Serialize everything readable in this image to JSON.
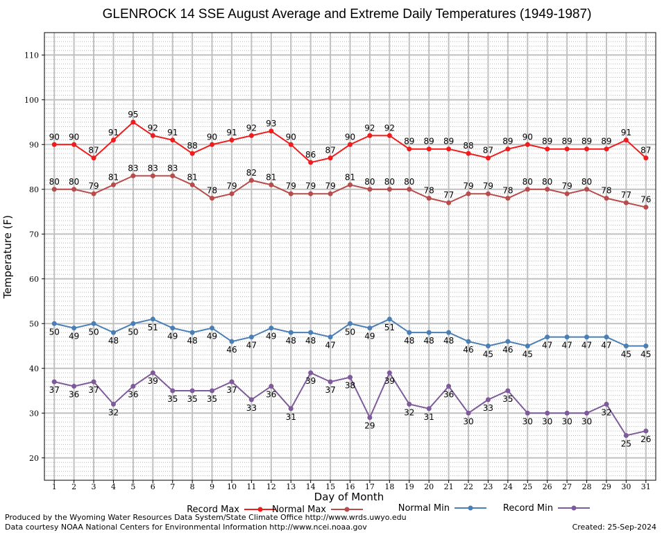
{
  "chart_data": {
    "type": "line",
    "title": "GLENROCK 14 SSE August Average and Extreme Daily Temperatures (1949-1987)",
    "xlabel": "Day of Month",
    "ylabel": "Temperature (F)",
    "x": [
      1,
      2,
      3,
      4,
      5,
      6,
      7,
      8,
      9,
      10,
      11,
      12,
      13,
      14,
      15,
      16,
      17,
      18,
      19,
      20,
      21,
      22,
      23,
      24,
      25,
      26,
      27,
      28,
      29,
      30,
      31
    ],
    "xlim": [
      0.5,
      31.5
    ],
    "ylim": [
      15,
      115
    ],
    "yticks": [
      20,
      30,
      40,
      50,
      60,
      70,
      80,
      90,
      100,
      110
    ],
    "grid": true,
    "legend_position": "bottom",
    "series": [
      {
        "name": "Record Max",
        "color": "#ee1c1c",
        "label_pos": "above",
        "values": [
          90,
          90,
          87,
          91,
          95,
          92,
          91,
          88,
          90,
          91,
          92,
          93,
          90,
          86,
          87,
          90,
          92,
          92,
          89,
          89,
          89,
          88,
          87,
          89,
          90,
          89,
          89,
          89,
          89,
          91,
          87
        ]
      },
      {
        "name": "Normal Max",
        "color": "#b84b4b",
        "label_pos": "above",
        "values": [
          80,
          80,
          79,
          81,
          83,
          83,
          83,
          81,
          78,
          79,
          82,
          81,
          79,
          79,
          79,
          81,
          80,
          80,
          80,
          78,
          77,
          79,
          79,
          78,
          80,
          80,
          79,
          80,
          78,
          77,
          76
        ]
      },
      {
        "name": "Normal Min",
        "color": "#4a7fb5",
        "label_pos": "below",
        "values": [
          50,
          49,
          50,
          48,
          50,
          51,
          49,
          48,
          49,
          46,
          47,
          49,
          48,
          48,
          47,
          50,
          49,
          51,
          48,
          48,
          48,
          46,
          45,
          46,
          45,
          47,
          47,
          47,
          47,
          45,
          45
        ]
      },
      {
        "name": "Record Min",
        "color": "#7e5a9b",
        "label_pos": "below",
        "values": [
          37,
          36,
          37,
          32,
          36,
          39,
          35,
          35,
          35,
          37,
          33,
          36,
          31,
          39,
          37,
          38,
          29,
          39,
          32,
          31,
          36,
          30,
          33,
          35,
          30,
          30,
          30,
          30,
          32,
          25,
          26
        ]
      }
    ]
  },
  "footer": {
    "produced_by": "Produced by the Wyoming Water Resources Data System/State Climate Office http://www.wrds.uwyo.edu",
    "courtesy": "Data courtesy NOAA National Centers for Environmental Information http://www.ncei.noaa.gov",
    "created": "Created: 25-Sep-2024"
  }
}
